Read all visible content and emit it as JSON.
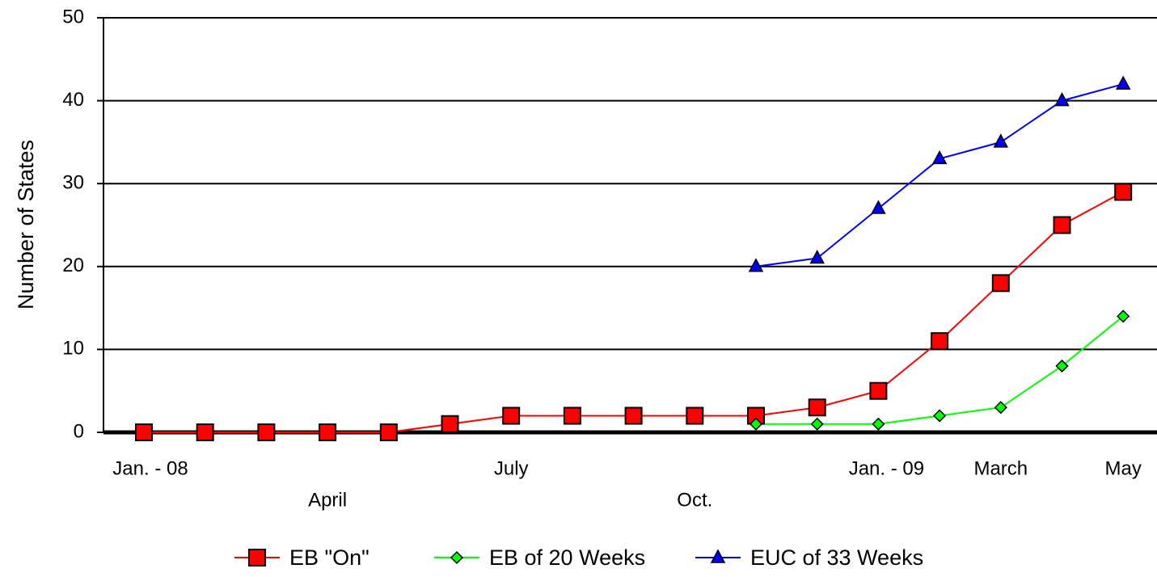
{
  "chart_data": {
    "type": "line",
    "y_label": "Number of States",
    "categories": [
      "Jan. - 08",
      null,
      null,
      "April",
      null,
      null,
      "July",
      null,
      null,
      "Oct.",
      null,
      null,
      "Jan. - 09",
      null,
      "March",
      null,
      "May"
    ],
    "series": [
      {
        "name": "EB \"On\"",
        "color": "#ff0000",
        "marker": "square",
        "values": [
          0,
          0,
          0,
          0,
          0,
          1,
          2,
          2,
          2,
          2,
          2,
          3,
          5,
          11,
          18,
          25,
          29
        ]
      },
      {
        "name": "EB of 20 Weeks",
        "color": "#00ff00",
        "marker": "diamond",
        "values": [
          null,
          null,
          null,
          null,
          null,
          null,
          null,
          null,
          null,
          null,
          1,
          1,
          1,
          2,
          3,
          8,
          14
        ]
      },
      {
        "name": "EUC of 33 Weeks",
        "color": "#0000ff",
        "marker": "triangle",
        "values": [
          null,
          null,
          null,
          null,
          null,
          null,
          null,
          null,
          null,
          null,
          20,
          21,
          27,
          33,
          35,
          40,
          42
        ]
      }
    ],
    "ylim": [
      0,
      50
    ],
    "yticks": [
      0,
      10,
      20,
      30,
      40,
      50
    ],
    "grid": true,
    "legend": "bottom"
  }
}
